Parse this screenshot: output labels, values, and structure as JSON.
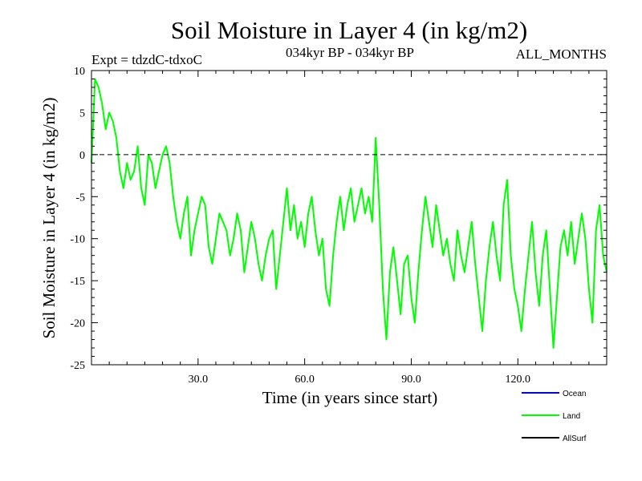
{
  "chart_data": {
    "type": "line",
    "title": "Soil Moisture in Layer 4 (in kg/m2)",
    "subtitle_left": "Expt = tdzdC-tdxoC",
    "subtitle_center": "034kyr BP - 034kyr BP",
    "subtitle_right": "ALL_MONTHS",
    "xlabel": "Time (in years since start)",
    "ylabel": "Soil Moisture in Layer 4 (in kg/m2)",
    "xlim": [
      0,
      145
    ],
    "ylim": [
      -25,
      10
    ],
    "x_ticks": [
      30,
      60,
      90,
      120
    ],
    "x_tick_labels": [
      "30.0",
      "60.0",
      "90.0",
      "120.0"
    ],
    "y_ticks": [
      10,
      5,
      0,
      -5,
      -10,
      -15,
      -20,
      -25
    ],
    "y_tick_labels": [
      "10",
      "5",
      "0",
      "-5",
      "-10",
      "-15",
      "-20",
      "-25"
    ],
    "reference_line": {
      "y": 0,
      "style": "dashed"
    },
    "legend": [
      {
        "name": "Ocean",
        "color": "#0000ff"
      },
      {
        "name": "Land",
        "color": "#00ff00"
      },
      {
        "name": "AllSurf",
        "color": "#000000"
      }
    ],
    "series": [
      {
        "name": "Land",
        "color": "#00ff00",
        "x": [
          0,
          1,
          2,
          3,
          4,
          5,
          6,
          7,
          8,
          9,
          10,
          11,
          12,
          13,
          14,
          15,
          16,
          17,
          18,
          19,
          20,
          21,
          22,
          23,
          24,
          25,
          26,
          27,
          28,
          29,
          30,
          31,
          32,
          33,
          34,
          35,
          36,
          37,
          38,
          39,
          40,
          41,
          42,
          43,
          44,
          45,
          46,
          47,
          48,
          49,
          50,
          51,
          52,
          53,
          54,
          55,
          56,
          57,
          58,
          59,
          60,
          61,
          62,
          63,
          64,
          65,
          66,
          67,
          68,
          69,
          70,
          71,
          72,
          73,
          74,
          75,
          76,
          77,
          78,
          79,
          80,
          81,
          82,
          83,
          84,
          85,
          86,
          87,
          88,
          89,
          90,
          91,
          92,
          93,
          94,
          95,
          96,
          97,
          98,
          99,
          100,
          101,
          102,
          103,
          104,
          105,
          106,
          107,
          108,
          109,
          110,
          111,
          112,
          113,
          114,
          115,
          116,
          117,
          118,
          119,
          120,
          121,
          122,
          123,
          124,
          125,
          126,
          127,
          128,
          129,
          130,
          131,
          132,
          133,
          134,
          135,
          136,
          137,
          138,
          139,
          140,
          141,
          142,
          143,
          144,
          145
        ],
        "values": [
          -1,
          9,
          8,
          6,
          3,
          5,
          4,
          2,
          -2,
          -4,
          -1,
          -3,
          -2,
          1,
          -4,
          -6,
          0,
          -1,
          -4,
          -2,
          0,
          1,
          -1,
          -5,
          -8,
          -10,
          -7,
          -5,
          -12,
          -9,
          -7,
          -5,
          -6,
          -11,
          -13,
          -10,
          -7,
          -8,
          -9,
          -12,
          -10,
          -7,
          -9,
          -14,
          -11,
          -8,
          -10,
          -13,
          -15,
          -12,
          -10,
          -9,
          -16,
          -12,
          -8,
          -4,
          -9,
          -6,
          -10,
          -8,
          -11,
          -7,
          -5,
          -9,
          -12,
          -10,
          -16,
          -18,
          -12,
          -8,
          -5,
          -9,
          -6,
          -4,
          -8,
          -6,
          -4,
          -7,
          -5,
          -8,
          2,
          -6,
          -16,
          -22,
          -14,
          -11,
          -15,
          -19,
          -13,
          -12,
          -17,
          -20,
          -14,
          -9,
          -5,
          -8,
          -11,
          -6,
          -9,
          -12,
          -10,
          -13,
          -15,
          -9,
          -12,
          -14,
          -11,
          -8,
          -13,
          -17,
          -21,
          -15,
          -11,
          -8,
          -12,
          -15,
          -6,
          -3,
          -12,
          -16,
          -18,
          -21,
          -16,
          -12,
          -8,
          -14,
          -18,
          -12,
          -9,
          -16,
          -23,
          -17,
          -11,
          -9,
          -12,
          -8,
          -13,
          -10,
          -7,
          -10,
          -16,
          -20,
          -9,
          -6,
          -12,
          -14
        ]
      }
    ]
  }
}
